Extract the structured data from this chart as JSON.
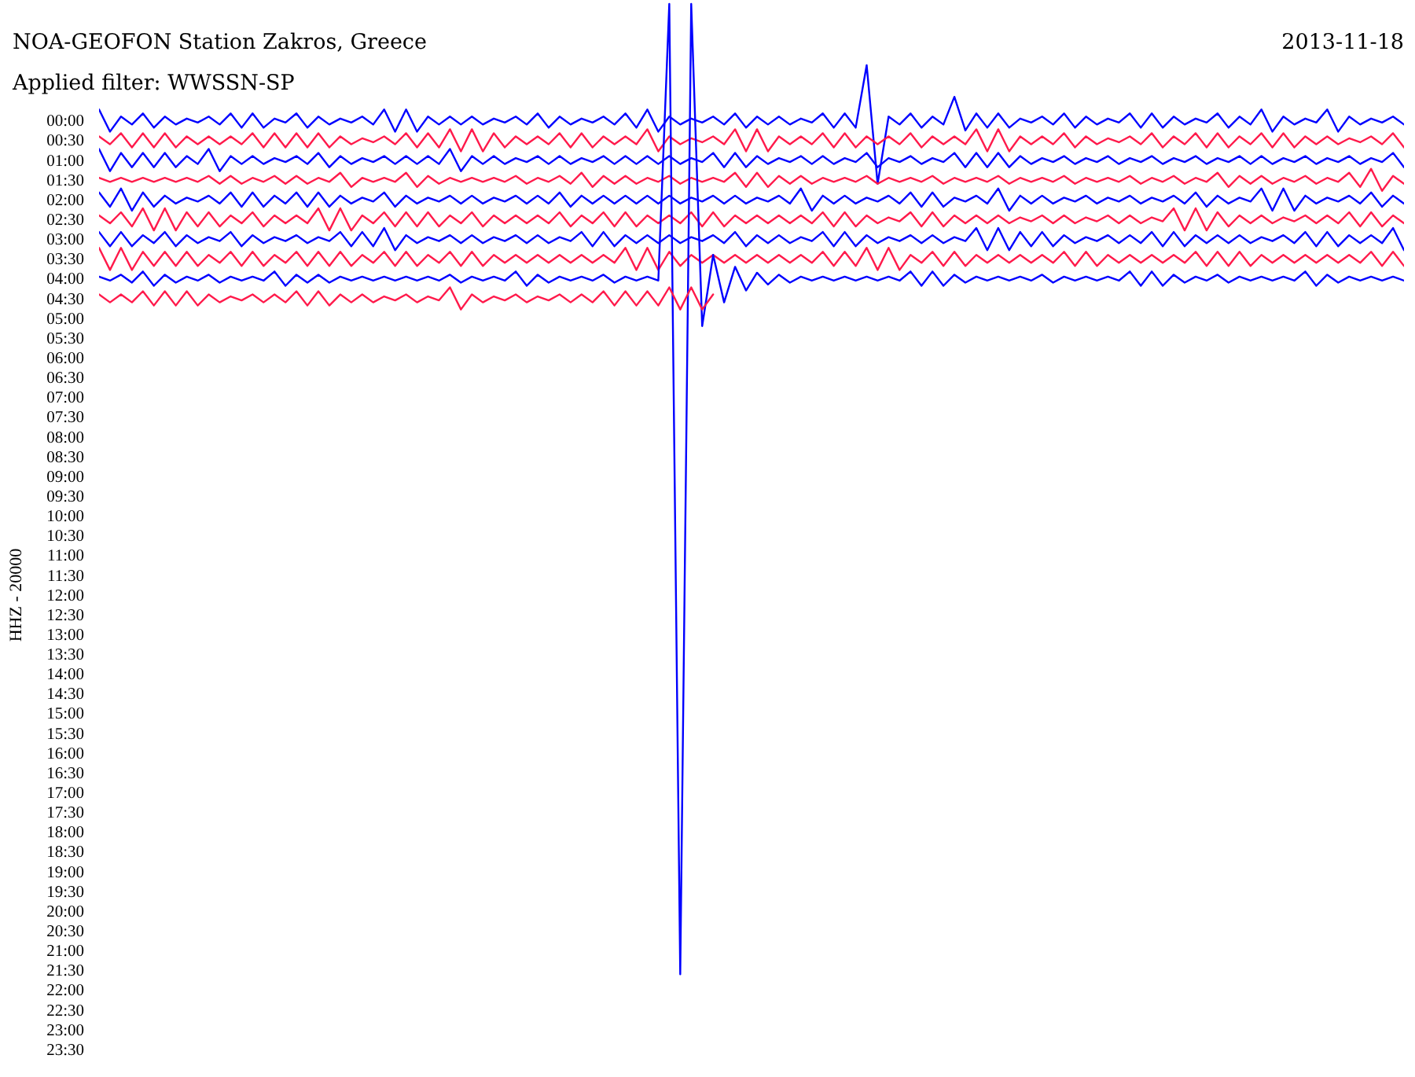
{
  "chart_data": {
    "type": "line",
    "title": "NOA-GEOFON Station Zakros, Greece",
    "subtitle": "Applied filter: WWSSN-SP",
    "ylabel": "HHZ - 20000",
    "annotations": [
      "2013-11-18"
    ],
    "categories": [
      null,
      null,
      null,
      null,
      null,
      null,
      null,
      null,
      null,
      null,
      null,
      null,
      null,
      null,
      null,
      null,
      null,
      null,
      null,
      null,
      null,
      null,
      null,
      null,
      null,
      null,
      null,
      null,
      null,
      null,
      null,
      null,
      null,
      null,
      null,
      null,
      null,
      null,
      null,
      null,
      null,
      null,
      null,
      null,
      null,
      null,
      null,
      null,
      null,
      null,
      null,
      null,
      null,
      null,
      null,
      null,
      null,
      null,
      null,
      null,
      null,
      null,
      null,
      null,
      null,
      null,
      null,
      null,
      null,
      null,
      null,
      null,
      null,
      null,
      null,
      null,
      null,
      null,
      null,
      null,
      null,
      null,
      null,
      null,
      null,
      null,
      null,
      null,
      null,
      null,
      null,
      null,
      null,
      null,
      null,
      null,
      null,
      null,
      null,
      null,
      null,
      null,
      null,
      null,
      null,
      null,
      null,
      null,
      null,
      null,
      null,
      null,
      null,
      null,
      null,
      null,
      null,
      null,
      null,
      null
    ],
    "ylim": [
      24.2,
      -3.05
    ],
    "yticks": [
      {
        "value": 0,
        "label": "00:00"
      },
      {
        "value": 0.5,
        "label": "00:30"
      },
      {
        "value": 1,
        "label": "01:00"
      },
      {
        "value": 1.5,
        "label": "01:30"
      },
      {
        "value": 2,
        "label": "02:00"
      },
      {
        "value": 2.5,
        "label": "02:30"
      },
      {
        "value": 3,
        "label": "03:00"
      },
      {
        "value": 3.5,
        "label": "03:30"
      },
      {
        "value": 4,
        "label": "04:00"
      },
      {
        "value": 4.5,
        "label": "04:30"
      },
      {
        "value": 5,
        "label": "05:00"
      },
      {
        "value": 5.5,
        "label": "05:30"
      },
      {
        "value": 6,
        "label": "06:00"
      },
      {
        "value": 6.5,
        "label": "06:30"
      },
      {
        "value": 7,
        "label": "07:00"
      },
      {
        "value": 7.5,
        "label": "07:30"
      },
      {
        "value": 8,
        "label": "08:00"
      },
      {
        "value": 8.5,
        "label": "08:30"
      },
      {
        "value": 9,
        "label": "09:00"
      },
      {
        "value": 9.5,
        "label": "09:30"
      },
      {
        "value": 10,
        "label": "10:00"
      },
      {
        "value": 10.5,
        "label": "10:30"
      },
      {
        "value": 11,
        "label": "11:00"
      },
      {
        "value": 11.5,
        "label": "11:30"
      },
      {
        "value": 12,
        "label": "12:00"
      },
      {
        "value": 12.5,
        "label": "12:30"
      },
      {
        "value": 13,
        "label": "13:00"
      },
      {
        "value": 13.5,
        "label": "13:30"
      },
      {
        "value": 14,
        "label": "14:00"
      },
      {
        "value": 14.5,
        "label": "14:30"
      },
      {
        "value": 15,
        "label": "15:00"
      },
      {
        "value": 15.5,
        "label": "15:30"
      },
      {
        "value": 16,
        "label": "16:00"
      },
      {
        "value": 16.5,
        "label": "16:30"
      },
      {
        "value": 17,
        "label": "17:00"
      },
      {
        "value": 17.5,
        "label": "17:30"
      },
      {
        "value": 18,
        "label": "18:00"
      },
      {
        "value": 18.5,
        "label": "18:30"
      },
      {
        "value": 19,
        "label": "19:00"
      },
      {
        "value": 19.5,
        "label": "19:30"
      },
      {
        "value": 20,
        "label": "20:00"
      },
      {
        "value": 20.5,
        "label": "20:30"
      },
      {
        "value": 21,
        "label": "21:00"
      },
      {
        "value": 21.5,
        "label": "21:30"
      },
      {
        "value": 22,
        "label": "22:00"
      },
      {
        "value": 22.5,
        "label": "22:30"
      },
      {
        "value": 23,
        "label": "23:00"
      },
      {
        "value": 23.5,
        "label": "23:30"
      }
    ],
    "grid": false,
    "tick_labels": "y",
    "series": [
      {
        "color": "#0000ff",
        "values": [
          -0.28,
          0.28,
          -0.1,
          0.1,
          -0.18,
          0.18,
          -0.1,
          0.1,
          -0.05,
          0.05,
          -0.1,
          0.1,
          -0.18,
          0.18,
          -0.18,
          0.18,
          -0.05,
          0.05,
          -0.18,
          0.18,
          -0.1,
          0.1,
          -0.05,
          0.05,
          -0.1,
          0.1,
          -0.28,
          0.28,
          -0.28,
          0.28,
          -0.1,
          0.1,
          -0.1,
          0.1,
          -0.1,
          0.1,
          -0.05,
          0.05,
          -0.1,
          0.1,
          -0.18,
          0.18,
          -0.1,
          0.1,
          -0.05,
          0.05,
          -0.1,
          0.1,
          -0.18,
          0.18,
          -0.28,
          0.28,
          -0.1,
          0.1,
          -0.05,
          0.05,
          -0.1,
          0.1,
          -0.18,
          0.18,
          -0.1,
          0.1,
          -0.1,
          0.1,
          -0.05,
          0.05,
          -0.18,
          0.18,
          -0.18,
          0.18,
          -1.4,
          1.6,
          -0.1,
          0.1,
          -0.18,
          0.18,
          -0.1,
          0.1,
          -0.6,
          0.25,
          -0.18,
          0.18,
          -0.18,
          0.18,
          -0.05,
          0.05,
          -0.1,
          0.1,
          -0.18,
          0.18,
          -0.1,
          0.1,
          -0.05,
          0.05,
          -0.18,
          0.18,
          -0.18,
          0.18,
          -0.1,
          0.1,
          -0.05,
          0.05,
          -0.18,
          0.18,
          -0.1,
          0.1,
          -0.28,
          0.28,
          -0.1,
          0.1,
          -0.05,
          0.05,
          -0.28,
          0.28,
          -0.1,
          0.1,
          -0.05,
          0.05,
          -0.1,
          0.1
        ]
      },
      {
        "color": "#ff1a4b",
        "values": [
          0.4,
          0.6,
          0.32,
          0.68,
          0.32,
          0.68,
          0.32,
          0.68,
          0.4,
          0.6,
          0.4,
          0.6,
          0.4,
          0.6,
          0.32,
          0.68,
          0.32,
          0.68,
          0.32,
          0.68,
          0.32,
          0.68,
          0.4,
          0.6,
          0.45,
          0.55,
          0.4,
          0.6,
          0.32,
          0.68,
          0.32,
          0.68,
          0.22,
          0.78,
          0.22,
          0.78,
          0.32,
          0.68,
          0.4,
          0.6,
          0.4,
          0.6,
          0.32,
          0.68,
          0.32,
          0.68,
          0.4,
          0.6,
          0.4,
          0.6,
          0.22,
          0.78,
          0.4,
          0.6,
          0.45,
          0.55,
          0.4,
          0.6,
          0.22,
          0.78,
          0.22,
          0.78,
          0.4,
          0.6,
          0.4,
          0.6,
          0.32,
          0.68,
          0.32,
          0.68,
          0.4,
          0.6,
          0.4,
          0.6,
          0.32,
          0.68,
          0.4,
          0.6,
          0.4,
          0.6,
          0.22,
          0.78,
          0.22,
          0.78,
          0.4,
          0.6,
          0.4,
          0.6,
          0.32,
          0.68,
          0.4,
          0.6,
          0.45,
          0.55,
          0.4,
          0.6,
          0.32,
          0.68,
          0.4,
          0.6,
          0.32,
          0.68,
          0.32,
          0.68,
          0.4,
          0.6,
          0.32,
          0.68,
          0.32,
          0.68,
          0.4,
          0.6,
          0.4,
          0.6,
          0.45,
          0.55,
          0.4,
          0.6,
          0.32,
          0.68
        ]
      },
      {
        "color": "#0000ff",
        "values": [
          0.72,
          1.28,
          0.82,
          1.18,
          0.82,
          1.18,
          0.82,
          1.18,
          0.9,
          1.1,
          0.72,
          1.28,
          0.9,
          1.1,
          0.9,
          1.1,
          0.95,
          1.05,
          0.9,
          1.1,
          0.82,
          1.18,
          0.9,
          1.1,
          0.95,
          1.05,
          0.9,
          1.1,
          0.9,
          1.1,
          0.9,
          1.1,
          0.72,
          1.28,
          0.9,
          1.1,
          0.9,
          1.1,
          0.95,
          1.05,
          0.9,
          1.1,
          0.9,
          1.1,
          0.95,
          1.05,
          0.9,
          1.1,
          0.9,
          1.1,
          0.9,
          1.1,
          0.9,
          1.1,
          0.95,
          1.05,
          0.82,
          1.18,
          0.82,
          1.18,
          0.9,
          1.1,
          0.95,
          1.05,
          0.9,
          1.1,
          0.9,
          1.1,
          0.95,
          1.05,
          0.82,
          1.18,
          0.95,
          1.05,
          0.9,
          1.1,
          0.95,
          1.05,
          0.82,
          1.18,
          0.82,
          1.18,
          0.82,
          1.18,
          0.9,
          1.1,
          0.95,
          1.05,
          0.9,
          1.1,
          0.95,
          1.05,
          0.9,
          1.1,
          0.95,
          1.05,
          0.9,
          1.1,
          0.95,
          1.05,
          0.9,
          1.1,
          0.95,
          1.05,
          0.9,
          1.1,
          0.9,
          1.1,
          0.95,
          1.05,
          0.9,
          1.1,
          0.95,
          1.05,
          0.9,
          1.1,
          0.95,
          1.05,
          0.82,
          1.18
        ]
      },
      {
        "color": "#ff1a4b",
        "values": [
          1.45,
          1.55,
          1.45,
          1.55,
          1.45,
          1.55,
          1.45,
          1.55,
          1.45,
          1.55,
          1.4,
          1.6,
          1.4,
          1.6,
          1.45,
          1.55,
          1.4,
          1.6,
          1.4,
          1.6,
          1.45,
          1.55,
          1.32,
          1.68,
          1.45,
          1.55,
          1.45,
          1.55,
          1.32,
          1.68,
          1.4,
          1.6,
          1.45,
          1.55,
          1.45,
          1.55,
          1.45,
          1.55,
          1.4,
          1.6,
          1.45,
          1.55,
          1.4,
          1.6,
          1.32,
          1.68,
          1.4,
          1.6,
          1.4,
          1.6,
          1.45,
          1.55,
          1.4,
          1.6,
          1.45,
          1.55,
          1.45,
          1.55,
          1.32,
          1.68,
          1.32,
          1.68,
          1.4,
          1.6,
          1.4,
          1.6,
          1.45,
          1.55,
          1.45,
          1.55,
          1.4,
          1.6,
          1.45,
          1.55,
          1.45,
          1.55,
          1.4,
          1.6,
          1.45,
          1.55,
          1.45,
          1.55,
          1.4,
          1.6,
          1.45,
          1.55,
          1.45,
          1.55,
          1.4,
          1.6,
          1.45,
          1.55,
          1.45,
          1.55,
          1.4,
          1.6,
          1.45,
          1.55,
          1.4,
          1.6,
          1.45,
          1.55,
          1.32,
          1.68,
          1.4,
          1.6,
          1.4,
          1.6,
          1.45,
          1.55,
          1.4,
          1.6,
          1.45,
          1.55,
          1.32,
          1.68,
          1.22,
          1.78,
          1.4,
          1.6
        ]
      },
      {
        "color": "#0000ff",
        "values": [
          1.82,
          2.18,
          1.72,
          2.28,
          1.82,
          2.18,
          1.9,
          2.1,
          1.95,
          2.05,
          1.9,
          2.1,
          1.82,
          2.18,
          1.82,
          2.18,
          1.9,
          2.1,
          1.82,
          2.18,
          1.82,
          2.18,
          1.9,
          2.1,
          1.95,
          2.05,
          1.82,
          2.18,
          1.9,
          2.1,
          1.95,
          2.05,
          1.9,
          2.1,
          1.9,
          2.1,
          1.95,
          2.05,
          1.9,
          2.1,
          1.9,
          2.1,
          1.82,
          2.18,
          1.9,
          2.1,
          1.9,
          2.1,
          1.9,
          2.1,
          1.9,
          2.1,
          1.9,
          2.1,
          1.95,
          2.05,
          1.9,
          2.1,
          1.9,
          2.1,
          1.95,
          2.05,
          1.9,
          2.1,
          1.72,
          2.28,
          1.9,
          2.1,
          1.9,
          2.1,
          1.95,
          2.05,
          1.9,
          2.1,
          1.82,
          2.18,
          1.82,
          2.18,
          1.95,
          2.05,
          1.9,
          2.1,
          1.72,
          2.28,
          1.9,
          2.1,
          1.9,
          2.1,
          1.95,
          2.05,
          1.9,
          2.1,
          1.95,
          2.05,
          1.9,
          2.1,
          1.95,
          2.05,
          1.9,
          2.1,
          1.82,
          2.18,
          1.9,
          2.1,
          1.95,
          2.05,
          1.72,
          2.28,
          1.72,
          2.28,
          1.9,
          2.1,
          1.95,
          2.05,
          1.9,
          2.1,
          1.82,
          2.18,
          1.9,
          2.1
        ]
      },
      {
        "color": "#ff1a4b",
        "values": [
          2.4,
          2.6,
          2.32,
          2.68,
          2.22,
          2.78,
          2.22,
          2.78,
          2.32,
          2.68,
          2.32,
          2.68,
          2.4,
          2.6,
          2.32,
          2.68,
          2.4,
          2.6,
          2.4,
          2.6,
          2.22,
          2.78,
          2.22,
          2.78,
          2.4,
          2.6,
          2.32,
          2.68,
          2.32,
          2.68,
          2.32,
          2.68,
          2.4,
          2.6,
          2.32,
          2.68,
          2.4,
          2.6,
          2.4,
          2.6,
          2.4,
          2.6,
          2.32,
          2.68,
          2.4,
          2.6,
          2.32,
          2.68,
          2.32,
          2.68,
          2.4,
          2.6,
          2.4,
          2.6,
          2.32,
          2.68,
          2.32,
          2.68,
          2.4,
          2.6,
          2.4,
          2.6,
          2.4,
          2.6,
          2.4,
          2.6,
          2.32,
          2.68,
          2.32,
          2.68,
          2.4,
          2.6,
          2.45,
          2.55,
          2.32,
          2.68,
          2.32,
          2.68,
          2.4,
          2.6,
          2.4,
          2.6,
          2.4,
          2.6,
          2.45,
          2.55,
          2.4,
          2.6,
          2.4,
          2.6,
          2.45,
          2.55,
          2.4,
          2.6,
          2.4,
          2.6,
          2.45,
          2.55,
          2.22,
          2.78,
          2.22,
          2.78,
          2.32,
          2.68,
          2.4,
          2.6,
          2.4,
          2.6,
          2.45,
          2.55,
          2.4,
          2.6,
          2.4,
          2.6,
          2.32,
          2.68,
          2.32,
          2.68,
          2.4,
          2.6
        ]
      },
      {
        "color": "#0000ff",
        "values": [
          2.82,
          3.18,
          2.82,
          3.18,
          2.9,
          3.1,
          2.82,
          3.18,
          2.9,
          3.1,
          2.95,
          3.05,
          2.82,
          3.18,
          2.9,
          3.1,
          2.95,
          3.05,
          2.9,
          3.1,
          2.95,
          3.05,
          2.82,
          3.18,
          2.82,
          3.18,
          2.72,
          3.28,
          2.9,
          3.1,
          2.95,
          3.05,
          2.9,
          3.1,
          2.9,
          3.1,
          2.95,
          3.05,
          2.9,
          3.1,
          2.9,
          3.1,
          2.95,
          3.05,
          2.82,
          3.18,
          2.82,
          3.18,
          2.9,
          3.1,
          2.9,
          3.1,
          2.9,
          3.1,
          2.95,
          3.05,
          2.9,
          3.1,
          2.82,
          3.18,
          2.9,
          3.1,
          2.9,
          3.1,
          2.95,
          3.05,
          2.82,
          3.18,
          2.82,
          3.18,
          2.9,
          3.1,
          2.95,
          3.05,
          2.9,
          3.1,
          2.9,
          3.1,
          2.95,
          3.05,
          2.72,
          3.28,
          2.72,
          3.28,
          2.82,
          3.18,
          2.82,
          3.18,
          2.9,
          3.1,
          2.95,
          3.05,
          2.9,
          3.1,
          2.9,
          3.1,
          2.82,
          3.18,
          2.82,
          3.18,
          2.9,
          3.1,
          2.9,
          3.1,
          2.9,
          3.1,
          2.95,
          3.05,
          2.9,
          3.1,
          2.82,
          3.18,
          2.82,
          3.18,
          2.9,
          3.1,
          2.9,
          3.1,
          2.72,
          3.28
        ]
      },
      {
        "color": "#ff1a4b",
        "values": [
          3.22,
          3.78,
          3.22,
          3.78,
          3.32,
          3.68,
          3.32,
          3.68,
          3.32,
          3.68,
          3.4,
          3.6,
          3.32,
          3.68,
          3.32,
          3.68,
          3.4,
          3.6,
          3.32,
          3.68,
          3.32,
          3.68,
          3.32,
          3.68,
          3.4,
          3.6,
          3.32,
          3.68,
          3.32,
          3.68,
          3.4,
          3.6,
          3.32,
          3.68,
          3.32,
          3.68,
          3.4,
          3.6,
          3.4,
          3.6,
          3.4,
          3.6,
          3.4,
          3.6,
          3.4,
          3.6,
          3.4,
          3.6,
          3.22,
          3.78,
          3.22,
          3.78,
          3.32,
          3.68,
          3.4,
          3.6,
          3.4,
          3.6,
          3.4,
          3.6,
          3.4,
          3.6,
          3.4,
          3.6,
          3.4,
          3.6,
          3.32,
          3.68,
          3.32,
          3.68,
          3.22,
          3.78,
          3.22,
          3.78,
          3.4,
          3.6,
          3.32,
          3.68,
          3.32,
          3.68,
          3.4,
          3.6,
          3.4,
          3.6,
          3.4,
          3.6,
          3.4,
          3.6,
          3.32,
          3.68,
          3.32,
          3.68,
          3.4,
          3.6,
          3.4,
          3.6,
          3.4,
          3.6,
          3.4,
          3.6,
          3.32,
          3.68,
          3.32,
          3.68,
          3.32,
          3.68,
          3.4,
          3.6,
          3.4,
          3.6,
          3.4,
          3.6,
          3.4,
          3.6,
          3.4,
          3.6,
          3.32,
          3.68,
          3.32,
          3.68
        ]
      },
      {
        "color": "#0000ff",
        "values": [
          3.95,
          4.05,
          3.9,
          4.1,
          3.82,
          4.18,
          3.9,
          4.1,
          3.95,
          4.05,
          3.9,
          4.1,
          3.95,
          4.05,
          3.95,
          4.05,
          3.82,
          4.18,
          3.9,
          4.1,
          3.9,
          4.1,
          3.95,
          4.05,
          3.95,
          4.05,
          3.95,
          4.05,
          3.95,
          4.05,
          3.95,
          4.05,
          3.9,
          4.1,
          3.95,
          4.05,
          3.95,
          4.05,
          3.82,
          4.18,
          3.9,
          4.1,
          3.95,
          4.05,
          3.95,
          4.05,
          3.9,
          4.1,
          3.95,
          4.05,
          3.95,
          4.05,
          -2.95,
          21.6,
          -2.95,
          5.2,
          3.4,
          4.6,
          3.7,
          4.3,
          3.85,
          4.15,
          3.9,
          4.1,
          3.95,
          4.05,
          3.95,
          4.05,
          3.95,
          4.05,
          3.95,
          4.05,
          3.95,
          4.05,
          3.82,
          4.18,
          3.82,
          4.18,
          3.9,
          4.1,
          3.95,
          4.05,
          3.95,
          4.05,
          3.95,
          4.05,
          3.9,
          4.1,
          3.95,
          4.05,
          3.95,
          4.05,
          3.95,
          4.05,
          3.82,
          4.18,
          3.82,
          4.18,
          3.9,
          4.1,
          3.95,
          4.05,
          3.9,
          4.1,
          3.95,
          4.05,
          3.95,
          4.05,
          3.95,
          4.05,
          3.82,
          4.18,
          3.9,
          4.1,
          3.95,
          4.05,
          3.95,
          4.05,
          3.95,
          4.05
        ]
      },
      {
        "color": "#ff1a4b",
        "values": [
          4.4,
          4.6,
          4.4,
          4.6,
          4.32,
          4.68,
          4.32,
          4.68,
          4.32,
          4.68,
          4.4,
          4.6,
          4.45,
          4.55,
          4.4,
          4.6,
          4.4,
          4.6,
          4.32,
          4.68,
          4.32,
          4.68,
          4.4,
          4.6,
          4.4,
          4.6,
          4.45,
          4.55,
          4.4,
          4.6,
          4.45,
          4.55,
          4.22,
          4.78,
          4.4,
          4.6,
          4.45,
          4.55,
          4.4,
          4.6,
          4.45,
          4.55,
          4.4,
          4.6,
          4.4,
          4.6,
          4.32,
          4.68,
          4.32,
          4.68,
          4.32,
          4.68,
          4.22,
          4.78,
          4.22,
          4.78,
          4.4,
          null,
          null,
          null,
          null,
          null,
          null,
          null,
          null,
          null,
          null,
          null,
          null,
          null,
          null,
          null,
          null,
          null,
          null,
          null,
          null,
          null,
          null,
          null,
          null,
          null,
          null,
          null,
          null,
          null,
          null,
          null,
          null,
          null,
          null,
          null,
          null,
          null,
          null,
          null,
          null,
          null,
          null,
          null,
          null,
          null,
          null,
          null,
          null,
          null,
          null,
          null,
          null,
          null,
          null,
          null,
          null,
          null,
          null,
          null,
          null,
          null,
          null,
          null
        ]
      }
    ]
  }
}
